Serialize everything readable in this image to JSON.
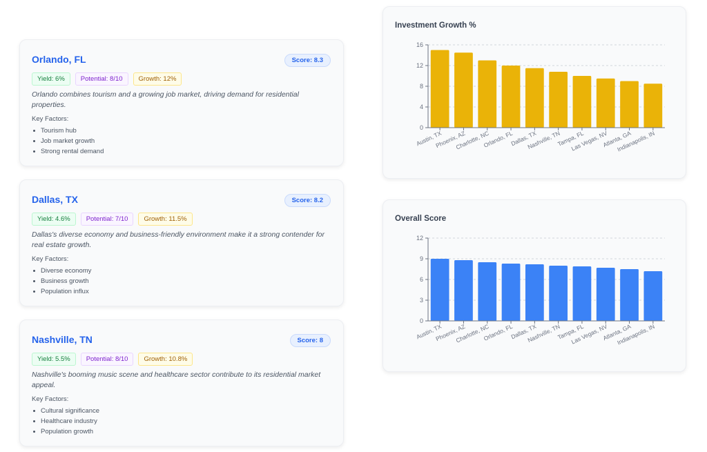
{
  "cities": [
    {
      "name": "Orlando, FL",
      "score": "Score: 8.3",
      "yield": "Yield: 6%",
      "potential": "Potential: 8/10",
      "growth": "Growth: 12%",
      "description": "Orlando combines tourism and a growing job market, driving demand for residential properties.",
      "key_factors_label": "Key Factors:",
      "factors": [
        "Tourism hub",
        "Job market growth",
        "Strong rental demand"
      ]
    },
    {
      "name": "Dallas, TX",
      "score": "Score: 8.2",
      "yield": "Yield: 4.6%",
      "potential": "Potential: 7/10",
      "growth": "Growth: 11.5%",
      "description": "Dallas's diverse economy and business-friendly environment make it a strong contender for real estate growth.",
      "key_factors_label": "Key Factors:",
      "factors": [
        "Diverse economy",
        "Business growth",
        "Population influx"
      ]
    },
    {
      "name": "Nashville, TN",
      "score": "Score: 8",
      "yield": "Yield: 5.5%",
      "potential": "Potential: 8/10",
      "growth": "Growth: 10.8%",
      "description": "Nashville's booming music scene and healthcare sector contribute to its residential market appeal.",
      "key_factors_label": "Key Factors:",
      "factors": [
        "Cultural significance",
        "Healthcare industry",
        "Population growth"
      ]
    }
  ],
  "chart_data": [
    {
      "type": "bar",
      "title": "Investment Growth %",
      "categories": [
        "Austin, TX",
        "Phoenix, AZ",
        "Charlotte, NC",
        "Orlando, FL",
        "Dallas, TX",
        "Nashville, TN",
        "Tampa, FL",
        "Las Vegas, NV",
        "Atlanta, GA",
        "Indianapolis, IN"
      ],
      "values": [
        15,
        14.5,
        13,
        12,
        11.5,
        10.8,
        10,
        9.5,
        9,
        8.5
      ],
      "ylim": [
        0,
        16
      ],
      "yticks": [
        0,
        4,
        8,
        12,
        16
      ],
      "color": "#eab308",
      "grid": true
    },
    {
      "type": "bar",
      "title": "Overall Score",
      "categories": [
        "Austin, TX",
        "Phoenix, AZ",
        "Charlotte, NC",
        "Orlando, FL",
        "Dallas, TX",
        "Nashville, TN",
        "Tampa, FL",
        "Las Vegas, NV",
        "Atlanta, GA",
        "Indianapolis, IN"
      ],
      "values": [
        9,
        8.8,
        8.5,
        8.3,
        8.2,
        8,
        7.9,
        7.7,
        7.5,
        7.2
      ],
      "ylim": [
        0,
        12
      ],
      "yticks": [
        0,
        3,
        6,
        9,
        12
      ],
      "color": "#3b82f6",
      "grid": true
    }
  ]
}
